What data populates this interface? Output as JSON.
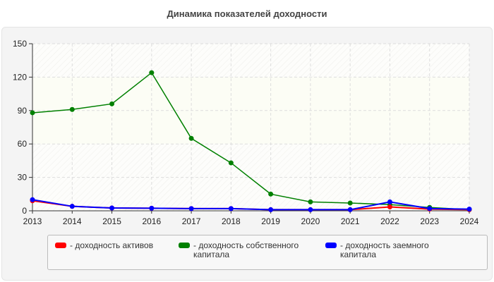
{
  "chart_data": {
    "type": "line",
    "title": "Динамика показателей доходности",
    "categories": [
      "2013",
      "2014",
      "2015",
      "2016",
      "2017",
      "2018",
      "2019",
      "2020",
      "2021",
      "2022",
      "2023",
      "2024"
    ],
    "ylim": [
      0,
      150
    ],
    "yticks": [
      0,
      30,
      60,
      90,
      120,
      150
    ],
    "grid": true,
    "legend_position": "bottom",
    "series": [
      {
        "name": "- доходность активов",
        "color": "#ff0000",
        "values": [
          9,
          4,
          2.5,
          2.3,
          2,
          2,
          1,
          1,
          1,
          3.5,
          1.5,
          1
        ]
      },
      {
        "name": "- доходность собственного капитала",
        "color": "#008000",
        "values": [
          88,
          91,
          96,
          124,
          65,
          43,
          15,
          8,
          7,
          5.5,
          3,
          1
        ]
      },
      {
        "name": "- доходность заемного капитала",
        "color": "#0000ff",
        "values": [
          10,
          4,
          2.5,
          2.3,
          2,
          2,
          1,
          1,
          1,
          8,
          2,
          1.5
        ]
      }
    ]
  }
}
